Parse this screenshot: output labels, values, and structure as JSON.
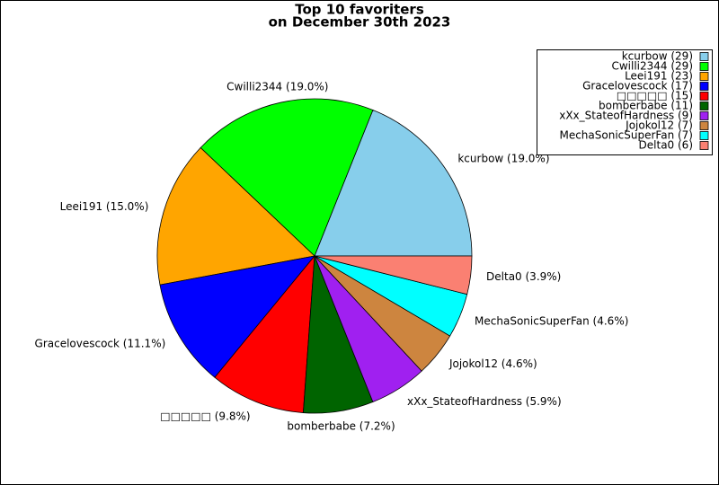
{
  "chart_data": {
    "type": "pie",
    "title": [
      "Top 10 favoriters",
      "on December 30th 2023"
    ],
    "categories": [
      "kcurbow",
      "Cwilli2344",
      "Leei191",
      "Gracelovescock",
      "□□□□□",
      "bomberbabe",
      "xXx_StateofHardness",
      "Jojokol12",
      "MechaSonicSuperFan",
      "Delta0"
    ],
    "values": [
      29,
      29,
      23,
      17,
      15,
      11,
      9,
      7,
      7,
      6
    ],
    "legend_labels": [
      "kcurbow (29)",
      "Cwilli2344 (29)",
      "Leei191 (23)",
      "Gracelovescock (17)",
      "□□□□□ (15)",
      "bomberbabe (11)",
      "xXx_StateofHardness (9)",
      "Jojokol12 (7)",
      "MechaSonicSuperFan (7)",
      "Delta0 (6)"
    ],
    "slice_labels": [
      "kcurbow (19.0%)",
      "Cwilli2344 (19.0%)",
      "Leei191 (15.0%)",
      "Gracelovescock (11.1%)",
      "□□□□□ (9.8%)",
      "bomberbabe (7.2%)",
      "xXx_StateofHardness (5.9%)",
      "Jojokol12 (4.6%)",
      "MechaSonicSuperFan (4.6%)",
      "Delta0 (3.9%)"
    ],
    "colors": [
      "#87ceeb",
      "#00ff00",
      "#ffa500",
      "#0000ff",
      "#ff0000",
      "#006400",
      "#a020f0",
      "#cd853f",
      "#00ffff",
      "#fa8072"
    ],
    "legend_position": "upper right"
  }
}
